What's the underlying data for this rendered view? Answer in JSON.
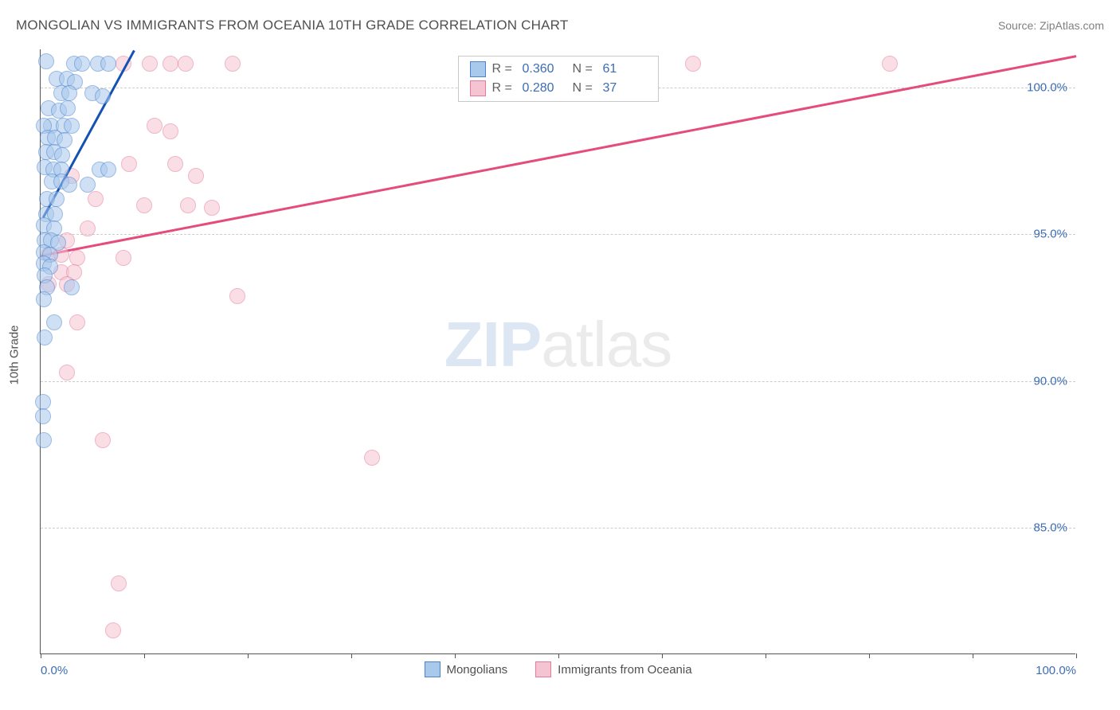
{
  "title": "MONGOLIAN VS IMMIGRANTS FROM OCEANIA 10TH GRADE CORRELATION CHART",
  "source": "Source: ZipAtlas.com",
  "y_axis_label": "10th Grade",
  "watermark": {
    "part1": "ZIP",
    "part2": "atlas"
  },
  "chart": {
    "type": "scatter",
    "background_color": "#ffffff",
    "grid_color": "#cccccc",
    "axis_color": "#555555",
    "xlim": [
      0,
      100
    ],
    "ylim": [
      80.7,
      101.3
    ],
    "y_ticks": [
      85.0,
      90.0,
      95.0,
      100.0
    ],
    "y_tick_labels": [
      "85.0%",
      "90.0%",
      "95.0%",
      "100.0%"
    ],
    "x_ticks": [
      0,
      10,
      20,
      30,
      40,
      50,
      60,
      70,
      80,
      90,
      100
    ],
    "x_labels_shown": {
      "0": "0.0%",
      "100": "100.0%"
    },
    "y_tick_label_color": "#3b6db5",
    "x_tick_label_color": "#3b6db5",
    "axis_label_color": "#505050",
    "label_fontsize": 15,
    "title_fontsize": 17,
    "point_radius": 10,
    "point_opacity": 0.55,
    "series": [
      {
        "name": "Mongolians",
        "fill_color": "#a8c8ec",
        "stroke_color": "#4a83cf",
        "trend_color": "#1451b4",
        "r": "0.360",
        "n": "61",
        "trend": {
          "x1": 0.2,
          "y1": 95.6,
          "x2": 9.0,
          "y2": 101.3
        },
        "points": [
          [
            0.5,
            100.9
          ],
          [
            3.2,
            100.8
          ],
          [
            4.0,
            100.8
          ],
          [
            5.5,
            100.8
          ],
          [
            6.5,
            100.8
          ],
          [
            1.5,
            100.3
          ],
          [
            2.5,
            100.3
          ],
          [
            3.3,
            100.2
          ],
          [
            2.0,
            99.8
          ],
          [
            2.8,
            99.8
          ],
          [
            5.0,
            99.8
          ],
          [
            6.0,
            99.7
          ],
          [
            0.8,
            99.3
          ],
          [
            1.8,
            99.2
          ],
          [
            2.6,
            99.3
          ],
          [
            1.0,
            98.7
          ],
          [
            2.2,
            98.7
          ],
          [
            3.0,
            98.7
          ],
          [
            0.3,
            98.7
          ],
          [
            0.7,
            98.3
          ],
          [
            1.4,
            98.3
          ],
          [
            2.3,
            98.2
          ],
          [
            0.5,
            97.8
          ],
          [
            1.3,
            97.8
          ],
          [
            2.1,
            97.7
          ],
          [
            0.4,
            97.3
          ],
          [
            1.2,
            97.2
          ],
          [
            2.0,
            97.2
          ],
          [
            5.7,
            97.2
          ],
          [
            6.5,
            97.2
          ],
          [
            1.1,
            96.8
          ],
          [
            2.0,
            96.8
          ],
          [
            2.8,
            96.7
          ],
          [
            4.5,
            96.7
          ],
          [
            0.6,
            96.2
          ],
          [
            1.5,
            96.2
          ],
          [
            0.5,
            95.7
          ],
          [
            1.4,
            95.7
          ],
          [
            0.3,
            95.3
          ],
          [
            1.3,
            95.2
          ],
          [
            0.4,
            94.8
          ],
          [
            1.0,
            94.8
          ],
          [
            1.7,
            94.7
          ],
          [
            0.3,
            94.4
          ],
          [
            0.9,
            94.3
          ],
          [
            0.3,
            94.0
          ],
          [
            0.9,
            93.9
          ],
          [
            0.4,
            93.6
          ],
          [
            0.6,
            93.2
          ],
          [
            3.0,
            93.2
          ],
          [
            0.3,
            92.8
          ],
          [
            1.3,
            92.0
          ],
          [
            0.4,
            91.5
          ],
          [
            0.2,
            89.3
          ],
          [
            0.2,
            88.8
          ],
          [
            0.3,
            88.0
          ]
        ]
      },
      {
        "name": "Immigrants from Oceania",
        "fill_color": "#f5c4d2",
        "stroke_color": "#e67a9a",
        "trend_color": "#e44c7b",
        "r": "0.280",
        "n": "37",
        "trend": {
          "x1": 0.0,
          "y1": 94.3,
          "x2": 100.0,
          "y2": 101.1
        },
        "points": [
          [
            8.0,
            100.8
          ],
          [
            10.5,
            100.8
          ],
          [
            12.5,
            100.8
          ],
          [
            14.0,
            100.8
          ],
          [
            18.5,
            100.8
          ],
          [
            63.0,
            100.8
          ],
          [
            82.0,
            100.8
          ],
          [
            11.0,
            98.7
          ],
          [
            12.5,
            98.5
          ],
          [
            8.5,
            97.4
          ],
          [
            13.0,
            97.4
          ],
          [
            15.0,
            97.0
          ],
          [
            3.0,
            97.0
          ],
          [
            5.3,
            96.2
          ],
          [
            10.0,
            96.0
          ],
          [
            14.2,
            96.0
          ],
          [
            16.5,
            95.9
          ],
          [
            4.5,
            95.2
          ],
          [
            2.5,
            94.8
          ],
          [
            0.8,
            94.3
          ],
          [
            2.0,
            94.3
          ],
          [
            3.5,
            94.2
          ],
          [
            8.0,
            94.2
          ],
          [
            2.0,
            93.7
          ],
          [
            3.2,
            93.7
          ],
          [
            0.8,
            93.3
          ],
          [
            2.5,
            93.3
          ],
          [
            19.0,
            92.9
          ],
          [
            3.5,
            92.0
          ],
          [
            2.5,
            90.3
          ],
          [
            6.0,
            88.0
          ],
          [
            32.0,
            87.4
          ],
          [
            7.5,
            83.1
          ],
          [
            7.0,
            81.5
          ]
        ]
      }
    ]
  },
  "legend_top": {
    "r_label": "R =",
    "n_label": "N ="
  },
  "legend_bottom": {
    "items": [
      "Mongolians",
      "Immigrants from Oceania"
    ]
  }
}
